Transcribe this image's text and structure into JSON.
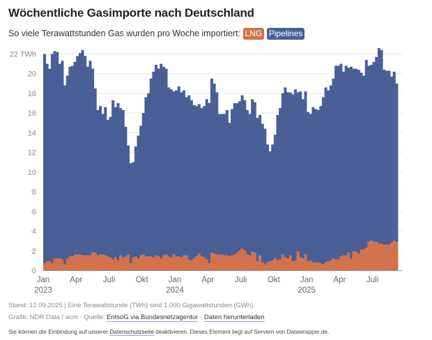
{
  "header": {
    "title": "Wöchentliche Gasimporte nach Deutschland",
    "subtitle_prefix": "So viele Terawattstunden Gas wurden pro Woche importiert:",
    "legend_lng": "LNG",
    "legend_pipelines": "Pipelines"
  },
  "colors": {
    "lng": "#d3724a",
    "pipelines": "#4a5f96",
    "grid": "#e6e6e6"
  },
  "footer": {
    "stand": "Stand: 12.09.2025 | Eine Terawattstunde (TWh) sind 1.000 Gigawattstunden (GWh).",
    "credit_prefix": "Grafik: NDR Data / acm · Quelle:",
    "source_link": "EntsoG via Bundesnetzagentur",
    "separator": "·",
    "download_link": "Daten herunterladen",
    "privacy_prefix": "Sie können die Einbindung auf unserer",
    "privacy_link": "Datenschutzseite",
    "privacy_suffix": "deaktivieren. Dieses Element liegt auf Servern von Datawrapper.de."
  },
  "chart_data": {
    "type": "area",
    "stacked": true,
    "title": "Wöchentliche Gasimporte nach Deutschland",
    "ylabel": "TWh",
    "ylim": [
      0,
      22
    ],
    "yticks": [
      0,
      2,
      4,
      6,
      8,
      10,
      12,
      14,
      16,
      18,
      20,
      22
    ],
    "ytick_labels": [
      "0",
      "2",
      "4",
      "6",
      "8",
      "10",
      "12",
      "14",
      "16",
      "18",
      "20",
      "22 TWh"
    ],
    "x_start": "2023-01",
    "x_unit": "week",
    "xticks": [
      {
        "week": 0,
        "label": "Jan",
        "year": "2023"
      },
      {
        "week": 13,
        "label": "Apr",
        "year": ""
      },
      {
        "week": 26,
        "label": "Juli",
        "year": ""
      },
      {
        "week": 39,
        "label": "Okt",
        "year": ""
      },
      {
        "week": 52,
        "label": "Jan",
        "year": "2024"
      },
      {
        "week": 65,
        "label": "Apr",
        "year": ""
      },
      {
        "week": 78,
        "label": "Juli",
        "year": ""
      },
      {
        "week": 91,
        "label": "Okt",
        "year": ""
      },
      {
        "week": 104,
        "label": "Jan",
        "year": "2025"
      },
      {
        "week": 117,
        "label": "Apr",
        "year": ""
      },
      {
        "week": 130,
        "label": "Juli",
        "year": ""
      }
    ],
    "grid": true,
    "legend": "subtitle",
    "series": [
      {
        "name": "LNG",
        "values": [
          0.7,
          0.9,
          0.9,
          0.7,
          1.2,
          1.2,
          1.2,
          1.1,
          0.6,
          1.2,
          1.4,
          1.4,
          1.6,
          1.6,
          1.6,
          1.5,
          1.5,
          1.5,
          1.5,
          1.8,
          1.8,
          1.5,
          1.6,
          1.6,
          1.5,
          1.4,
          1.3,
          1.1,
          1.3,
          1.0,
          1.5,
          1.3,
          1.4,
          1.6,
          0.7,
          1.3,
          1.4,
          1.2,
          1.5,
          1.6,
          1.4,
          1.4,
          1.4,
          1.3,
          1.5,
          1.4,
          1.2,
          1.5,
          1.6,
          1.4,
          1.3,
          1.6,
          1.4,
          1.4,
          1.3,
          1.5,
          1.5,
          1.1,
          1.0,
          1.2,
          1.4,
          1.7,
          1.4,
          1.3,
          1.1,
          0.7,
          1.8,
          1.7,
          1.6,
          1.6,
          1.6,
          1.5,
          1.5,
          1.4,
          1.5,
          1.6,
          1.8,
          2.0,
          2.2,
          2.0,
          1.6,
          1.5,
          1.9,
          1.8,
          0.9,
          1.5,
          0.8,
          0.6,
          0.8,
          0.9,
          1.0,
          1.2,
          1.0,
          1.1,
          1.6,
          1.3,
          1.2,
          1.5,
          0.9,
          1.0,
          1.9,
          1.3,
          1.2,
          1.6,
          0.9,
          1.0,
          0.8,
          0.8,
          0.8,
          0.7,
          0.6,
          0.8,
          0.9,
          1.0,
          1.2,
          1.1,
          1.1,
          1.4,
          1.5,
          1.5,
          1.8,
          1.2,
          1.9,
          1.9,
          1.7,
          2.1,
          2.1,
          2.3,
          2.9,
          3.0,
          2.9,
          2.9,
          2.7,
          2.7,
          2.6,
          2.6,
          2.6,
          2.8,
          3.0,
          2.9
        ]
      },
      {
        "name": "Pipelines",
        "values": [
          21.3,
          20.1,
          19.6,
          21.3,
          21.1,
          21.0,
          19.8,
          20.2,
          18.2,
          18.6,
          19.3,
          19.4,
          19.6,
          20.2,
          20.5,
          20.9,
          20.3,
          19.2,
          19.8,
          18.7,
          16.7,
          14.8,
          15.1,
          14.3,
          15.1,
          13.9,
          14.3,
          16.2,
          15.3,
          16.0,
          15.0,
          15.0,
          13.2,
          11.1,
          10.2,
          9.7,
          11.2,
          12.5,
          13.2,
          14.4,
          16.2,
          16.6,
          18.1,
          18.9,
          19.4,
          19.1,
          19.8,
          19.2,
          18.9,
          17.2,
          17.1,
          16.6,
          16.9,
          17.3,
          16.8,
          16.8,
          16.1,
          16.7,
          16.3,
          15.6,
          15.3,
          15.2,
          15.1,
          15.4,
          16.3,
          16.3,
          17.7,
          17.3,
          16.5,
          14.3,
          14.3,
          14.4,
          14.8,
          13.6,
          14.9,
          15.4,
          15.2,
          15.2,
          15.6,
          15.3,
          14.7,
          14.4,
          15.5,
          15.3,
          14.6,
          14.3,
          14.1,
          13.8,
          12.0,
          11.2,
          11.8,
          12.6,
          14.8,
          15.4,
          16.4,
          17.3,
          16.9,
          16.6,
          17.0,
          17.4,
          16.2,
          16.9,
          16.2,
          16.6,
          15.2,
          14.9,
          15.8,
          15.6,
          15.5,
          16.0,
          17.0,
          17.8,
          17.4,
          17.8,
          18.3,
          19.7,
          19.7,
          19.6,
          18.7,
          19.3,
          18.8,
          19.5,
          18.6,
          18.6,
          18.7,
          18.0,
          17.7,
          19.1,
          17.9,
          17.9,
          18.3,
          18.8,
          19.9,
          19.7,
          17.8,
          17.7,
          17.7,
          16.9,
          17.2,
          16.1
        ]
      }
    ]
  }
}
